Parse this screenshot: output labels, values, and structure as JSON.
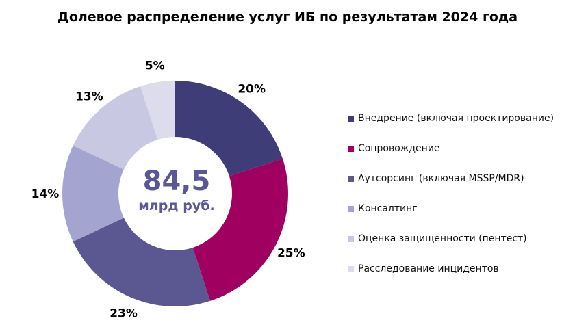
{
  "title": "Долевое распределение услуг ИБ по результатам 2024 года",
  "chart_data": {
    "type": "pie",
    "donut": true,
    "center_value": "84,5",
    "center_unit": "млрд руб.",
    "center_color": "#5b5696",
    "categories": [
      "Внедрение (включая проектирование)",
      "Сопровождение",
      "Аутсорсинг (включая MSSP/MDR)",
      "Консалтинг",
      "Оценка защищенности (пентест)",
      "Расследование инцидентов"
    ],
    "values": [
      20,
      25,
      23,
      14,
      13,
      5
    ],
    "value_labels": [
      "20%",
      "25%",
      "23%",
      "14%",
      "13%",
      "5%"
    ],
    "colors": [
      "#3f3d78",
      "#a0005f",
      "#5b5790",
      "#a4a4d0",
      "#c8c8e3",
      "#dcdcec"
    ],
    "legend_position": "right"
  }
}
